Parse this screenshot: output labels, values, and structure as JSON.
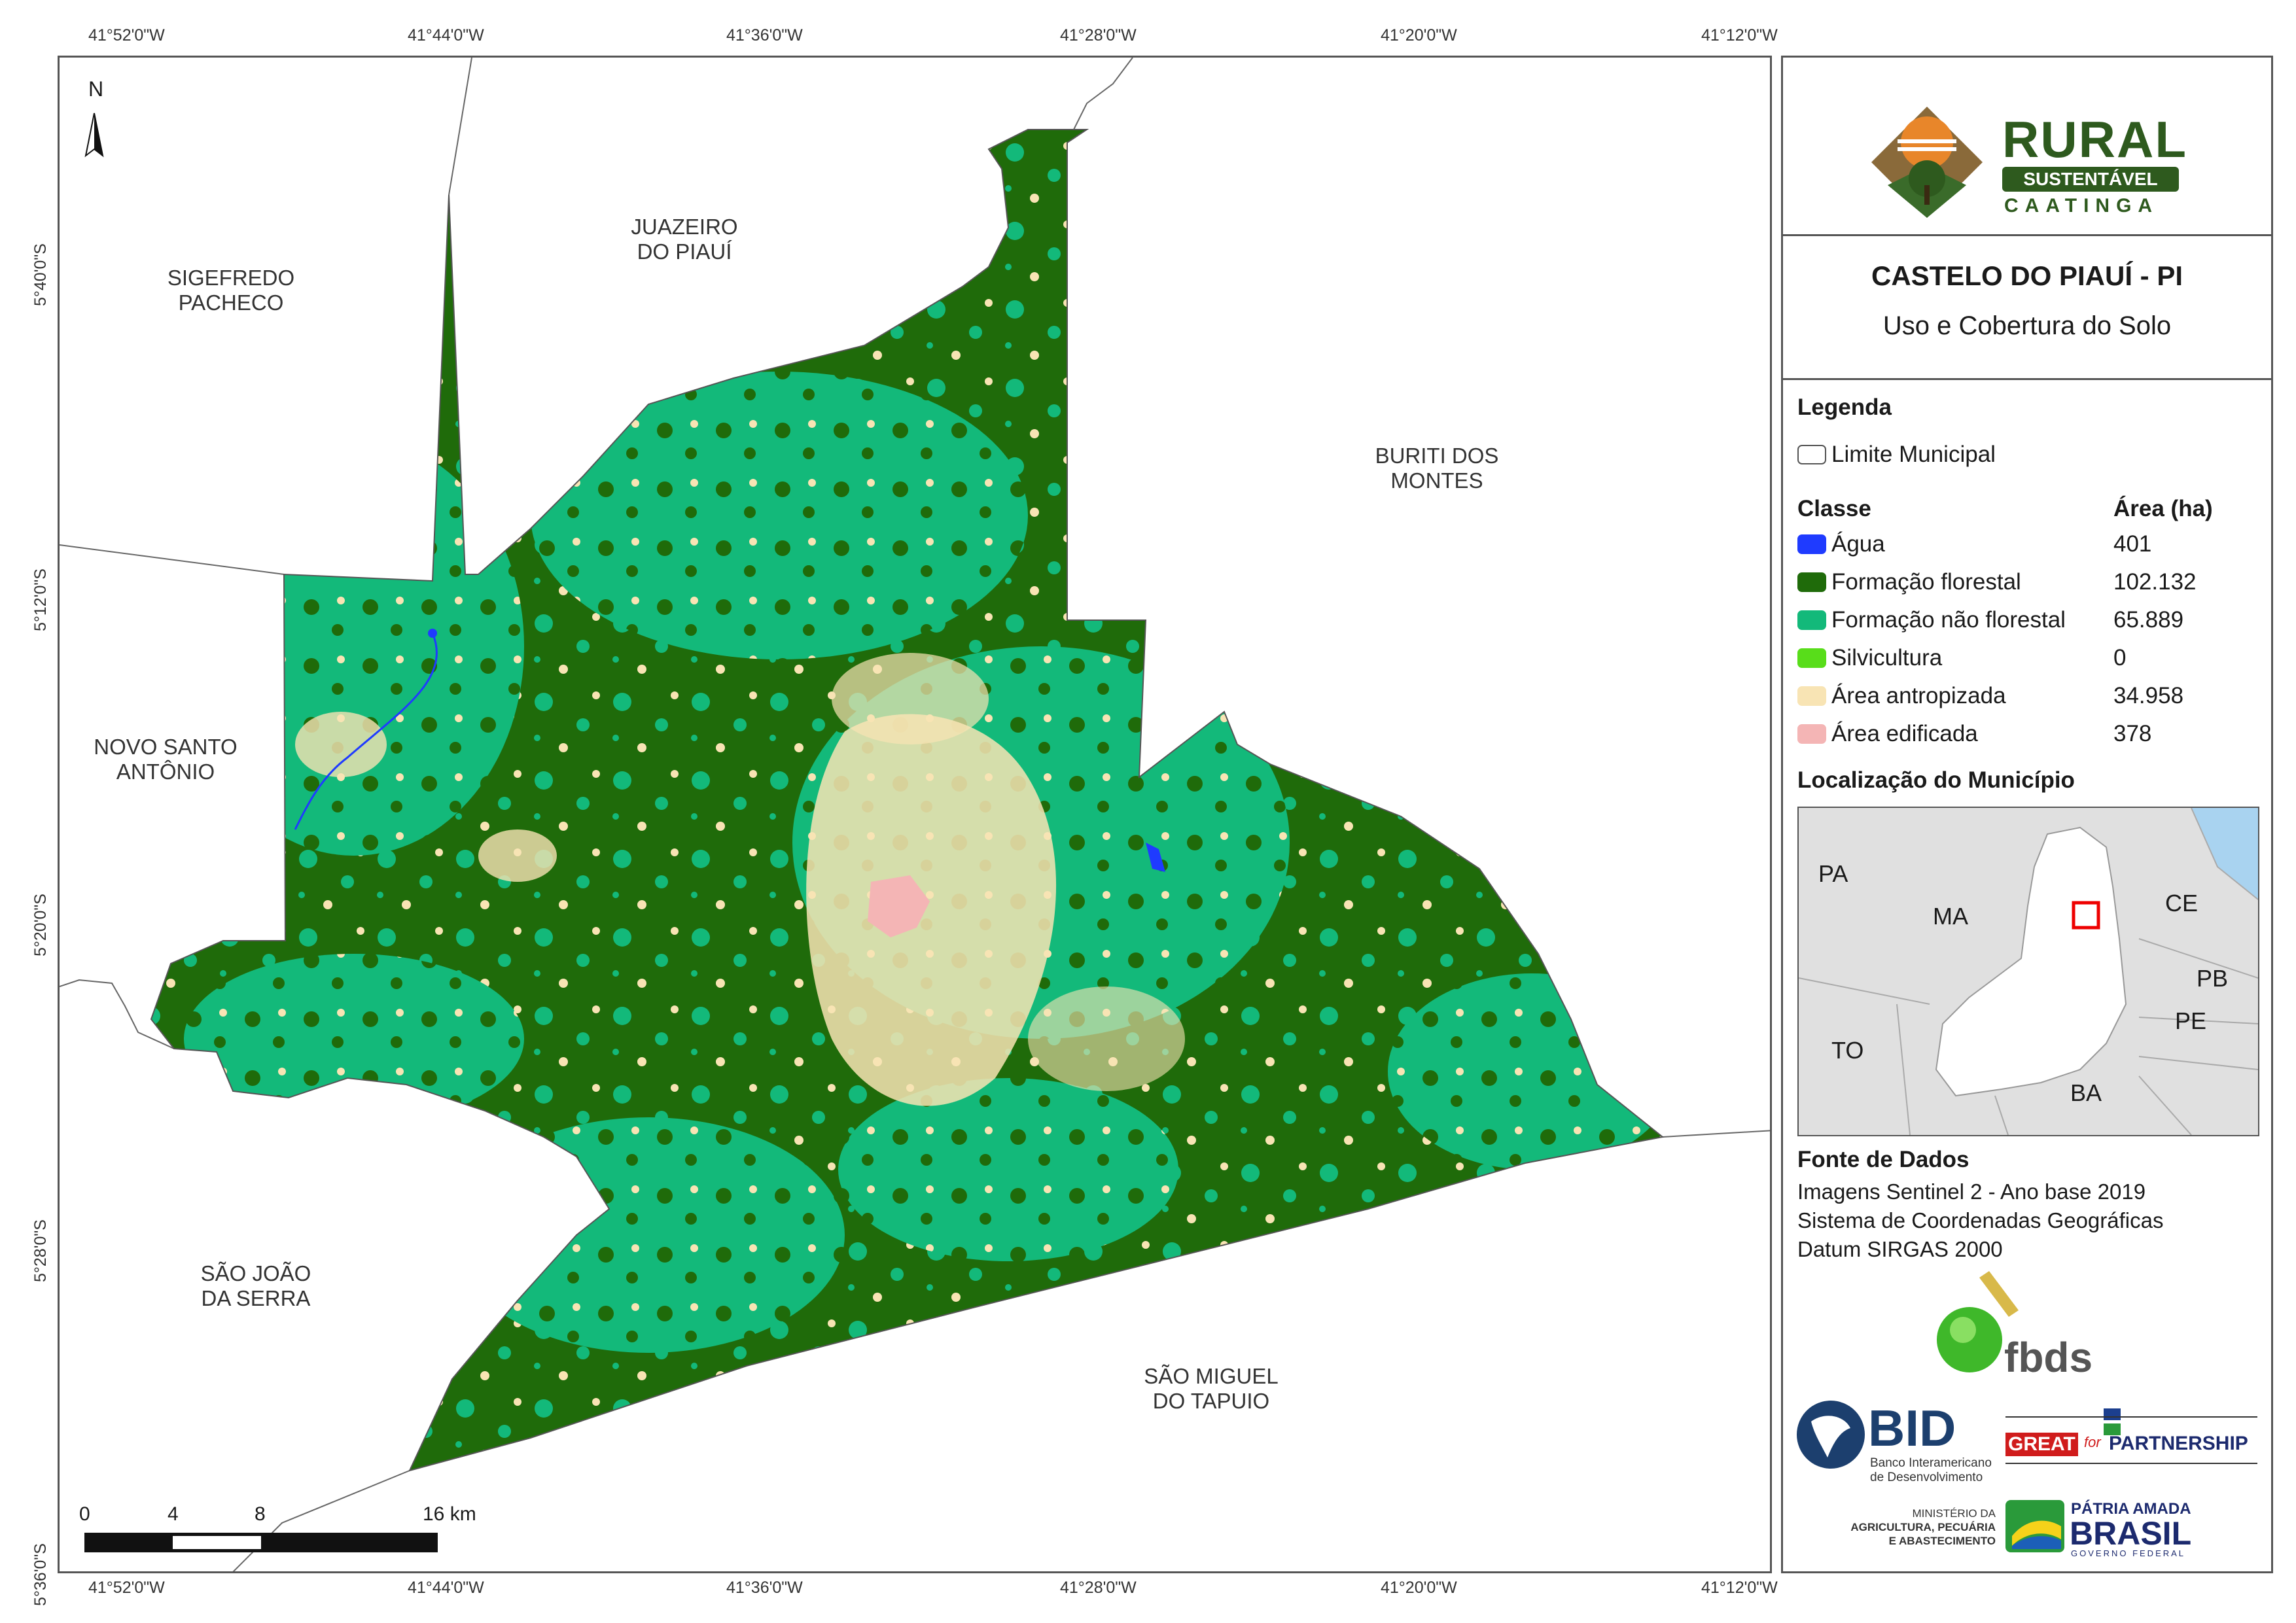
{
  "map": {
    "top_coords": [
      "41°52'0\"W",
      "41°44'0\"W",
      "41°36'0\"W",
      "41°28'0\"W",
      "41°20'0\"W",
      "41°12'0\"W"
    ],
    "bottom_coords": [
      "41°52'0\"W",
      "41°44'0\"W",
      "41°36'0\"W",
      "41°28'0\"W",
      "41°20'0\"W",
      "41°12'0\"W"
    ],
    "left_coords": [
      "5°40'0\"S",
      "5°12'0\"S",
      "5°20'0\"S",
      "5°28'0\"S",
      "5°36'0\"S"
    ],
    "north_label": "N",
    "neighbors": [
      {
        "line1": "SIGEFREDO",
        "line2": "PACHECO"
      },
      {
        "line1": "JUAZEIRO",
        "line2": "DO PIAUÍ"
      },
      {
        "line1": "BURITI DOS",
        "line2": "MONTES"
      },
      {
        "line1": "NOVO SANTO",
        "line2": "ANTÔNIO"
      },
      {
        "line1": "SÃO JOÃO",
        "line2": "DA SERRA"
      },
      {
        "line1": "SÃO MIGUEL",
        "line2": "DO TAPUIO"
      }
    ],
    "scale_labels": [
      "0",
      "4",
      "8",
      "16 km"
    ]
  },
  "panel": {
    "logo": {
      "line1": "RURAL",
      "line2": "SUSTENTÁVEL",
      "line3": "CAATINGA"
    },
    "title": "CASTELO DO PIAUÍ - PI",
    "subtitle": "Uso e Cobertura do Solo",
    "legend_title": "Legenda",
    "boundary_label": "Limite Municipal",
    "class_header": "Classe",
    "area_header": "Área (ha)",
    "classes": [
      {
        "label": "Água",
        "area": "401",
        "color": "#1f3bff"
      },
      {
        "label": "Formação florestal",
        "area": "102.132",
        "color": "#1f6b0a"
      },
      {
        "label": "Formação não florestal",
        "area": "65.889",
        "color": "#13b97a"
      },
      {
        "label": "Silvicultura",
        "area": "0",
        "color": "#58dd1a"
      },
      {
        "label": "Área antropizada",
        "area": "34.958",
        "color": "#f8e4b4"
      },
      {
        "label": "Área edificada",
        "area": "378",
        "color": "#f4b5b5"
      }
    ],
    "location_title": "Localização do Município",
    "location_labels": [
      "PA",
      "MA",
      "CE",
      "PB",
      "PE",
      "TO",
      "BA"
    ],
    "source_title": "Fonte de Dados",
    "source_lines": [
      "Imagens Sentinel 2 - Ano base 2019",
      "Sistema de Coordenadas Geográficas",
      "Datum SIRGAS 2000"
    ],
    "sponsors": {
      "fbds": "fbds",
      "bid": "BID",
      "bid_sub1": "Banco Interamericano",
      "bid_sub2": "de Desenvolvimento",
      "great_a": "GREAT",
      "great_b": "for",
      "great_c": "PARTNERSHIP",
      "ministry1": "MINISTÉRIO DA",
      "ministry2": "AGRICULTURA, PECUÁRIA",
      "ministry3": "E ABASTECIMENTO",
      "patria": "PÁTRIA AMADA",
      "brasil": "BRASIL",
      "gov": "GOVERNO FEDERAL"
    }
  }
}
